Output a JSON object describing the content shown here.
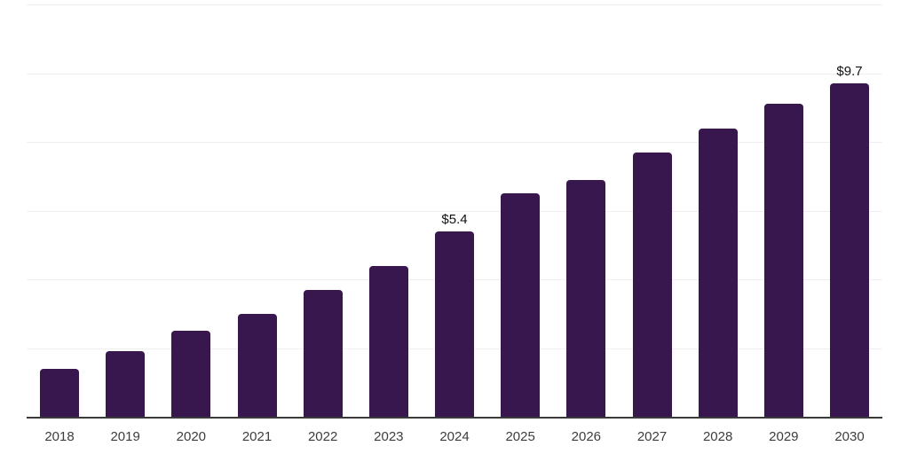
{
  "chart_data": {
    "type": "bar",
    "title": "",
    "xlabel": "",
    "ylabel": "",
    "categories": [
      "2018",
      "2019",
      "2020",
      "2021",
      "2022",
      "2023",
      "2024",
      "2025",
      "2026",
      "2027",
      "2028",
      "2029",
      "2030"
    ],
    "values": [
      1.4,
      1.9,
      2.5,
      3.0,
      3.7,
      4.4,
      5.4,
      6.5,
      6.9,
      7.7,
      8.4,
      9.1,
      9.7
    ],
    "data_labels": [
      null,
      null,
      null,
      null,
      null,
      null,
      "$5.4",
      null,
      null,
      null,
      null,
      null,
      "$9.7"
    ],
    "ylim": [
      0,
      12
    ],
    "gridline_step": 2,
    "grid": true,
    "legend": "none",
    "bar_color": "#38164e",
    "axis_color": "#3a3a3a",
    "gridline_color": "#efefef",
    "data_label_color": "#111111",
    "tick_label_color": "#3d3d3d"
  }
}
